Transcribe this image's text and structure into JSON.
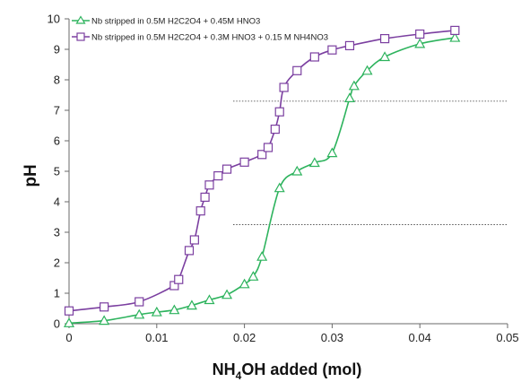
{
  "chart_data": {
    "type": "line",
    "title": "",
    "xlabel_main": "NH",
    "xlabel_sub": "4",
    "xlabel_rest": "OH added (mol)",
    "ylabel": "pH",
    "xlim": [
      0,
      0.05
    ],
    "ylim": [
      0,
      10
    ],
    "x_ticks": [
      "0",
      "0.01",
      "0.02",
      "0.03",
      "0.04",
      "0.05"
    ],
    "x_tick_values": [
      0,
      0.01,
      0.02,
      0.03,
      0.04,
      0.05
    ],
    "y_ticks": [
      "0",
      "1",
      "2",
      "3",
      "4",
      "5",
      "6",
      "7",
      "8",
      "9",
      "10"
    ],
    "y_tick_values": [
      0,
      1,
      2,
      3,
      4,
      5,
      6,
      7,
      8,
      9,
      10
    ],
    "grid": false,
    "reference_lines": [
      7.3,
      3.25
    ],
    "legend_position": "top-left",
    "series": [
      {
        "name": "Nb stripped in 0.5M H2C2O4 + 0.45M HNO3",
        "color": "#2db35d",
        "marker": "triangle",
        "x": [
          0,
          0.004,
          0.008,
          0.01,
          0.012,
          0.014,
          0.016,
          0.018,
          0.02,
          0.021,
          0.022,
          0.024,
          0.026,
          0.028,
          0.03,
          0.032,
          0.0325,
          0.034,
          0.036,
          0.04,
          0.044
        ],
        "y": [
          0.02,
          0.1,
          0.3,
          0.38,
          0.45,
          0.6,
          0.78,
          0.95,
          1.3,
          1.55,
          2.2,
          4.45,
          5.0,
          5.28,
          5.6,
          7.4,
          7.8,
          8.3,
          8.75,
          9.18,
          9.38
        ]
      },
      {
        "name": "Nb stripped in 0.5M H2C2O4 + 0.3M HNO3 + 0.15 M NH4NO3",
        "color": "#7b3fa0",
        "marker": "square",
        "x": [
          0,
          0.004,
          0.008,
          0.012,
          0.0125,
          0.0137,
          0.0143,
          0.015,
          0.0155,
          0.016,
          0.017,
          0.018,
          0.02,
          0.022,
          0.0227,
          0.0235,
          0.024,
          0.0245,
          0.026,
          0.028,
          0.03,
          0.032,
          0.036,
          0.04,
          0.044
        ],
        "y": [
          0.42,
          0.55,
          0.72,
          1.25,
          1.45,
          2.4,
          2.75,
          3.7,
          4.15,
          4.55,
          4.85,
          5.07,
          5.3,
          5.55,
          5.78,
          6.38,
          6.95,
          7.75,
          8.3,
          8.75,
          8.98,
          9.12,
          9.35,
          9.5,
          9.62
        ]
      }
    ]
  }
}
